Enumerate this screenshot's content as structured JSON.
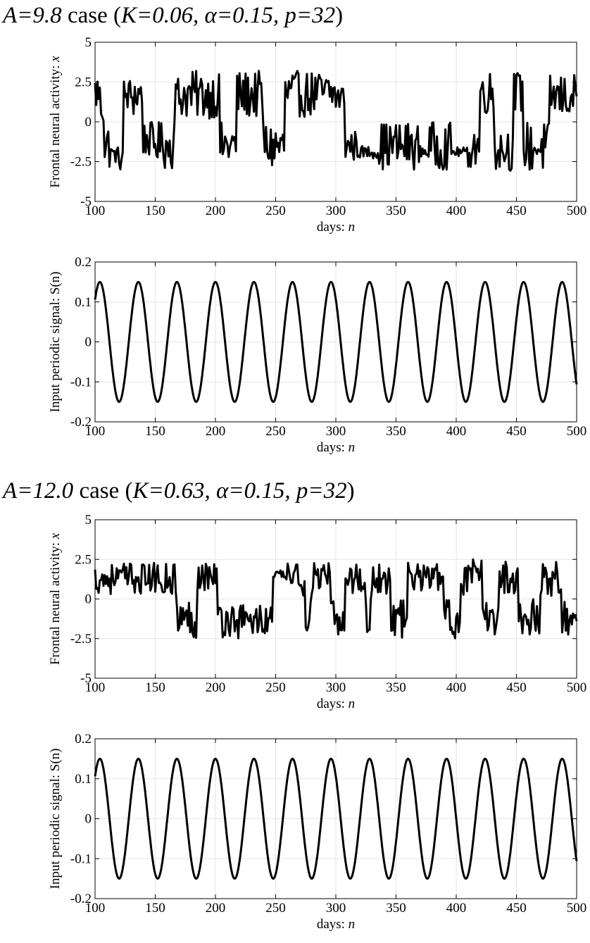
{
  "cases": [
    {
      "title": {
        "a": "A=9.8",
        "b": " case (",
        "c": "K=0.06, α=0.15, p=32",
        "d": ")"
      }
    },
    {
      "title": {
        "a": "A=12.0",
        "b": " case (",
        "c": "K=0.63, α=0.15, p=32",
        "d": ")"
      }
    }
  ],
  "chart_data": [
    {
      "type": "line",
      "xlabel": "days: ",
      "xlabel_var": "n",
      "ylabel": "Frontal neural activity: ",
      "ylabel_var": "x",
      "xlim": [
        100,
        500
      ],
      "ylim": [
        -5,
        5
      ],
      "xticks": [
        "100",
        "150",
        "200",
        "250",
        "300",
        "350",
        "400",
        "450",
        "500"
      ],
      "yticks": [
        "5",
        "2.5",
        "0",
        "-2.5",
        "-5"
      ],
      "grid": true,
      "series": [
        {
          "segments": [
            {
              "x": [
                100,
                104
              ],
              "lo": 0.5,
              "hi": 3.2
            },
            {
              "x": [
                104,
                108
              ],
              "lo": -0.5,
              "hi": 2.8
            },
            {
              "x": [
                108,
                114
              ],
              "lo": -3.0,
              "hi": 0.0
            },
            {
              "x": [
                114,
                118
              ],
              "lo": -2.6,
              "hi": -1.5
            },
            {
              "x": [
                118,
                124
              ],
              "lo": -3.1,
              "hi": -1.5
            },
            {
              "x": [
                124,
                131
              ],
              "lo": 0.5,
              "hi": 2.8
            },
            {
              "x": [
                131,
                140
              ],
              "lo": 0.2,
              "hi": 3.2
            },
            {
              "x": [
                140,
                146
              ],
              "lo": -2.2,
              "hi": 0.0
            },
            {
              "x": [
                146,
                150
              ],
              "lo": -3.0,
              "hi": 0.0
            },
            {
              "x": [
                150,
                158
              ],
              "lo": -2.6,
              "hi": 0.0
            },
            {
              "x": [
                158,
                166
              ],
              "lo": -3.0,
              "hi": 0.0
            },
            {
              "x": [
                166,
                172
              ],
              "lo": 0.0,
              "hi": 3.0
            },
            {
              "x": [
                172,
                204
              ],
              "lo": 0.2,
              "hi": 3.2
            },
            {
              "x": [
                204,
                218
              ],
              "lo": -3.0,
              "hi": 0.0
            },
            {
              "x": [
                218,
                240
              ],
              "lo": 0.2,
              "hi": 3.2
            },
            {
              "x": [
                240,
                258
              ],
              "lo": -3.1,
              "hi": 0.0
            },
            {
              "x": [
                258,
                300
              ],
              "lo": 0.3,
              "hi": 3.2
            },
            {
              "x": [
                300,
                308
              ],
              "lo": 0.5,
              "hi": 2.5
            },
            {
              "x": [
                308,
                318
              ],
              "lo": -2.5,
              "hi": -0.5
            },
            {
              "x": [
                318,
                336
              ],
              "lo": -2.3,
              "hi": -1.5
            },
            {
              "x": [
                336,
                370
              ],
              "lo": -3.0,
              "hi": 0.0
            },
            {
              "x": [
                370,
                376
              ],
              "lo": -2.2,
              "hi": -1.5
            },
            {
              "x": [
                376,
                396
              ],
              "lo": -3.0,
              "hi": 0.0
            },
            {
              "x": [
                396,
                410
              ],
              "lo": -2.2,
              "hi": -1.6
            },
            {
              "x": [
                410,
                420
              ],
              "lo": -3.0,
              "hi": 0.0
            },
            {
              "x": [
                420,
                432
              ],
              "lo": 0.5,
              "hi": 3.2
            },
            {
              "x": [
                432,
                448
              ],
              "lo": -3.1,
              "hi": -0.2
            },
            {
              "x": [
                448,
                456
              ],
              "lo": 0.5,
              "hi": 3.2
            },
            {
              "x": [
                456,
                478
              ],
              "lo": -3.2,
              "hi": 0.0
            },
            {
              "x": [
                478,
                500
              ],
              "lo": 0.2,
              "hi": 3.0
            }
          ]
        }
      ]
    },
    {
      "type": "line",
      "xlabel": "days: ",
      "xlabel_var": "n",
      "ylabel": "Input periodic signal: S(n)",
      "ylabel_var": "",
      "xlim": [
        100,
        500
      ],
      "ylim": [
        -0.2,
        0.2
      ],
      "xticks": [
        "100",
        "150",
        "200",
        "250",
        "300",
        "350",
        "400",
        "450",
        "500"
      ],
      "yticks": [
        "0.2",
        "0.1",
        "0",
        "-0.1",
        "-0.2"
      ],
      "grid": true,
      "series": [
        {
          "function": "alpha*sin(2*pi*n/p)",
          "alpha": 0.15,
          "p": 32
        }
      ]
    },
    {
      "type": "line",
      "xlabel": "days: ",
      "xlabel_var": "n",
      "ylabel": "Frontal neural activity: ",
      "ylabel_var": "x",
      "xlim": [
        100,
        500
      ],
      "ylim": [
        -5,
        5
      ],
      "xticks": [
        "100",
        "150",
        "200",
        "250",
        "300",
        "350",
        "400",
        "450",
        "500"
      ],
      "yticks": [
        "5",
        "2.5",
        "0",
        "-2.5",
        "-5"
      ],
      "grid": true,
      "series": [
        {
          "segments": [
            {
              "x": [
                100,
                168
              ],
              "lo": 0.3,
              "hi": 2.3
            },
            {
              "x": [
                168,
                185
              ],
              "lo": -2.5,
              "hi": 0.0
            },
            {
              "x": [
                185,
                202
              ],
              "lo": 0.5,
              "hi": 2.5
            },
            {
              "x": [
                202,
                248
              ],
              "lo": -2.5,
              "hi": -0.2
            },
            {
              "x": [
                248,
                260
              ],
              "lo": 1.2,
              "hi": 1.8
            },
            {
              "x": [
                260,
                275
              ],
              "lo": 0.2,
              "hi": 2.3
            },
            {
              "x": [
                275,
                280
              ],
              "lo": -2.4,
              "hi": 0.0
            },
            {
              "x": [
                280,
                296
              ],
              "lo": 0.2,
              "hi": 2.3
            },
            {
              "x": [
                296,
                308
              ],
              "lo": -2.5,
              "hi": 0.0
            },
            {
              "x": [
                308,
                325
              ],
              "lo": 0.3,
              "hi": 2.3
            },
            {
              "x": [
                325,
                330
              ],
              "lo": -2.3,
              "hi": 0.0
            },
            {
              "x": [
                330,
                346
              ],
              "lo": 0.2,
              "hi": 2.5
            },
            {
              "x": [
                346,
                360
              ],
              "lo": -2.5,
              "hi": 0.0
            },
            {
              "x": [
                360,
                390
              ],
              "lo": 0.5,
              "hi": 2.3
            },
            {
              "x": [
                390,
                404
              ],
              "lo": -2.5,
              "hi": 0.0
            },
            {
              "x": [
                404,
                422
              ],
              "lo": 0.2,
              "hi": 2.5
            },
            {
              "x": [
                422,
                436
              ],
              "lo": -2.3,
              "hi": 0.0
            },
            {
              "x": [
                436,
                452
              ],
              "lo": 0.3,
              "hi": 2.5
            },
            {
              "x": [
                452,
                470
              ],
              "lo": -2.4,
              "hi": 0.0
            },
            {
              "x": [
                470,
                488
              ],
              "lo": 0.2,
              "hi": 2.5
            },
            {
              "x": [
                488,
                494
              ],
              "lo": -2.3,
              "hi": 0.0
            },
            {
              "x": [
                494,
                500
              ],
              "lo": -2.0,
              "hi": -0.8
            }
          ]
        }
      ]
    },
    {
      "type": "line",
      "xlabel": "days: ",
      "xlabel_var": "n",
      "ylabel": "Input periodic signal: S(n)",
      "ylabel_var": "",
      "xlim": [
        100,
        500
      ],
      "ylim": [
        -0.2,
        0.2
      ],
      "xticks": [
        "100",
        "150",
        "200",
        "250",
        "300",
        "350",
        "400",
        "450",
        "500"
      ],
      "yticks": [
        "0.2",
        "0.1",
        "0",
        "-0.1",
        "-0.2"
      ],
      "grid": true,
      "series": [
        {
          "function": "alpha*sin(2*pi*n/p)",
          "alpha": 0.15,
          "p": 32
        }
      ]
    }
  ]
}
